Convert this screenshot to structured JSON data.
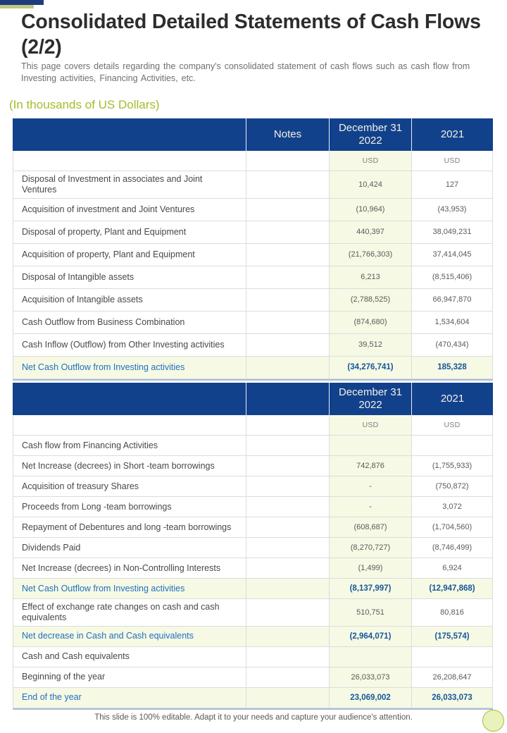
{
  "slide": {
    "title": "Consolidated Detailed Statements of Cash Flows (2/2)",
    "subtitle": "This page covers details regarding the company's consolidated statement of cash flows such as cash flow from Investing activities, Financing Activities, etc.",
    "units_label": "(In thousands of US Dollars)",
    "footer_note": "This slide is 100% editable. Adapt it to your needs and capture your audience's attention."
  },
  "colors": {
    "header_blue": "#12418C",
    "accent_navy": "#1E3C7C",
    "accent_olive": "#C3C67F",
    "pale_yellow": "#F6F9E4",
    "total_label_blue": "#1F6FC0",
    "total_value_blue": "#15579B",
    "units_green": "#A4BC2A"
  },
  "investing_table": {
    "columns": [
      "",
      "Notes",
      "December 31 2022",
      "2021"
    ],
    "unit_row": [
      "",
      "",
      "USD",
      "USD"
    ],
    "rows": [
      {
        "label": "Disposal of Investment  in associates and Joint Ventures",
        "notes": "",
        "dec_31_2022": "10,424",
        "y2021": "127",
        "style": "data"
      },
      {
        "label": "Acquisition of investment  and Joint Ventures",
        "notes": "",
        "dec_31_2022": "(10,964)",
        "y2021": "(43,953)",
        "style": "data"
      },
      {
        "label": "Disposal of property, Plant and Equipment",
        "notes": "",
        "dec_31_2022": "440,397",
        "y2021": "38,049,231",
        "style": "data"
      },
      {
        "label": "Acquisition of property, Plant and Equipment",
        "notes": "",
        "dec_31_2022": "(21,766,303)",
        "y2021": "37,414,045",
        "style": "data"
      },
      {
        "label": "Disposal of Intangible  assets",
        "notes": "",
        "dec_31_2022": "6,213",
        "y2021": "(8,515,406)",
        "style": "data"
      },
      {
        "label": "Acquisition of Intangible  assets",
        "notes": "",
        "dec_31_2022": "(2,788,525)",
        "y2021": "66,947,870",
        "style": "data"
      },
      {
        "label": "Cash Outflow from Business Combination",
        "notes": "",
        "dec_31_2022": "(874,680)",
        "y2021": "1,534,604",
        "style": "data"
      },
      {
        "label": "Cash Inflow (Outflow) from Other Investing  activities",
        "notes": "",
        "dec_31_2022": "39,512",
        "y2021": "(470,434)",
        "style": "data"
      },
      {
        "label": "Net Cash Outflow from Investing  activities",
        "notes": "",
        "dec_31_2022": "(34,276,741)",
        "y2021": "185,328",
        "style": "total"
      }
    ]
  },
  "financing_table": {
    "columns": [
      "",
      "",
      "December 31 2022",
      "2021"
    ],
    "unit_row": [
      "",
      "",
      "USD",
      "USD"
    ],
    "rows": [
      {
        "label": "Cash flow from Financing Activities",
        "notes": "",
        "dec_31_2022": "",
        "y2021": "",
        "style": "data"
      },
      {
        "label": "Net Increase  (decrees) in Short -team borrowings",
        "notes": "",
        "dec_31_2022": "742,876",
        "y2021": "(1,755,933)",
        "style": "data"
      },
      {
        "label": "Acquisition of treasury Shares",
        "notes": "",
        "dec_31_2022": "-",
        "y2021": "(750,872)",
        "style": "data"
      },
      {
        "label": "Proceeds from Long -team borrowings",
        "notes": "",
        "dec_31_2022": "-",
        "y2021": "3,072",
        "style": "data"
      },
      {
        "label": "Repayment of Debentures  and long -team borrowings",
        "notes": "",
        "dec_31_2022": "(608,687)",
        "y2021": "(1,704,560)",
        "style": "data"
      },
      {
        "label": "Dividends  Paid",
        "notes": "",
        "dec_31_2022": "(8,270,727)",
        "y2021": "(8,746,499)",
        "style": "data"
      },
      {
        "label": "Net Increase  (decrees) in Non-Controlling  Interests",
        "notes": "",
        "dec_31_2022": "(1,499)",
        "y2021": "6,924",
        "style": "data"
      },
      {
        "label": "Net Cash Outflow from Investing  activities",
        "notes": "",
        "dec_31_2022": "(8,137,997)",
        "y2021": "(12,947,868)",
        "style": "total"
      },
      {
        "label": "Effect of exchange rate changes on cash and cash equivalents",
        "notes": "",
        "dec_31_2022": "510,751",
        "y2021": "80,816",
        "style": "data"
      },
      {
        "label": "Net decrease in Cash and Cash equivalents",
        "notes": "",
        "dec_31_2022": "(2,964,071)",
        "y2021": "(175,574)",
        "style": "total"
      },
      {
        "label": "Cash and Cash equivalents",
        "notes": "",
        "dec_31_2022": "",
        "y2021": "",
        "style": "data"
      },
      {
        "label": "Beginning of the year",
        "notes": "",
        "dec_31_2022": "26,033,073",
        "y2021": "26,208,647",
        "style": "data"
      },
      {
        "label": "End of the year",
        "notes": "",
        "dec_31_2022": "23,069,002",
        "y2021": "26,033,073",
        "style": "total"
      }
    ]
  }
}
